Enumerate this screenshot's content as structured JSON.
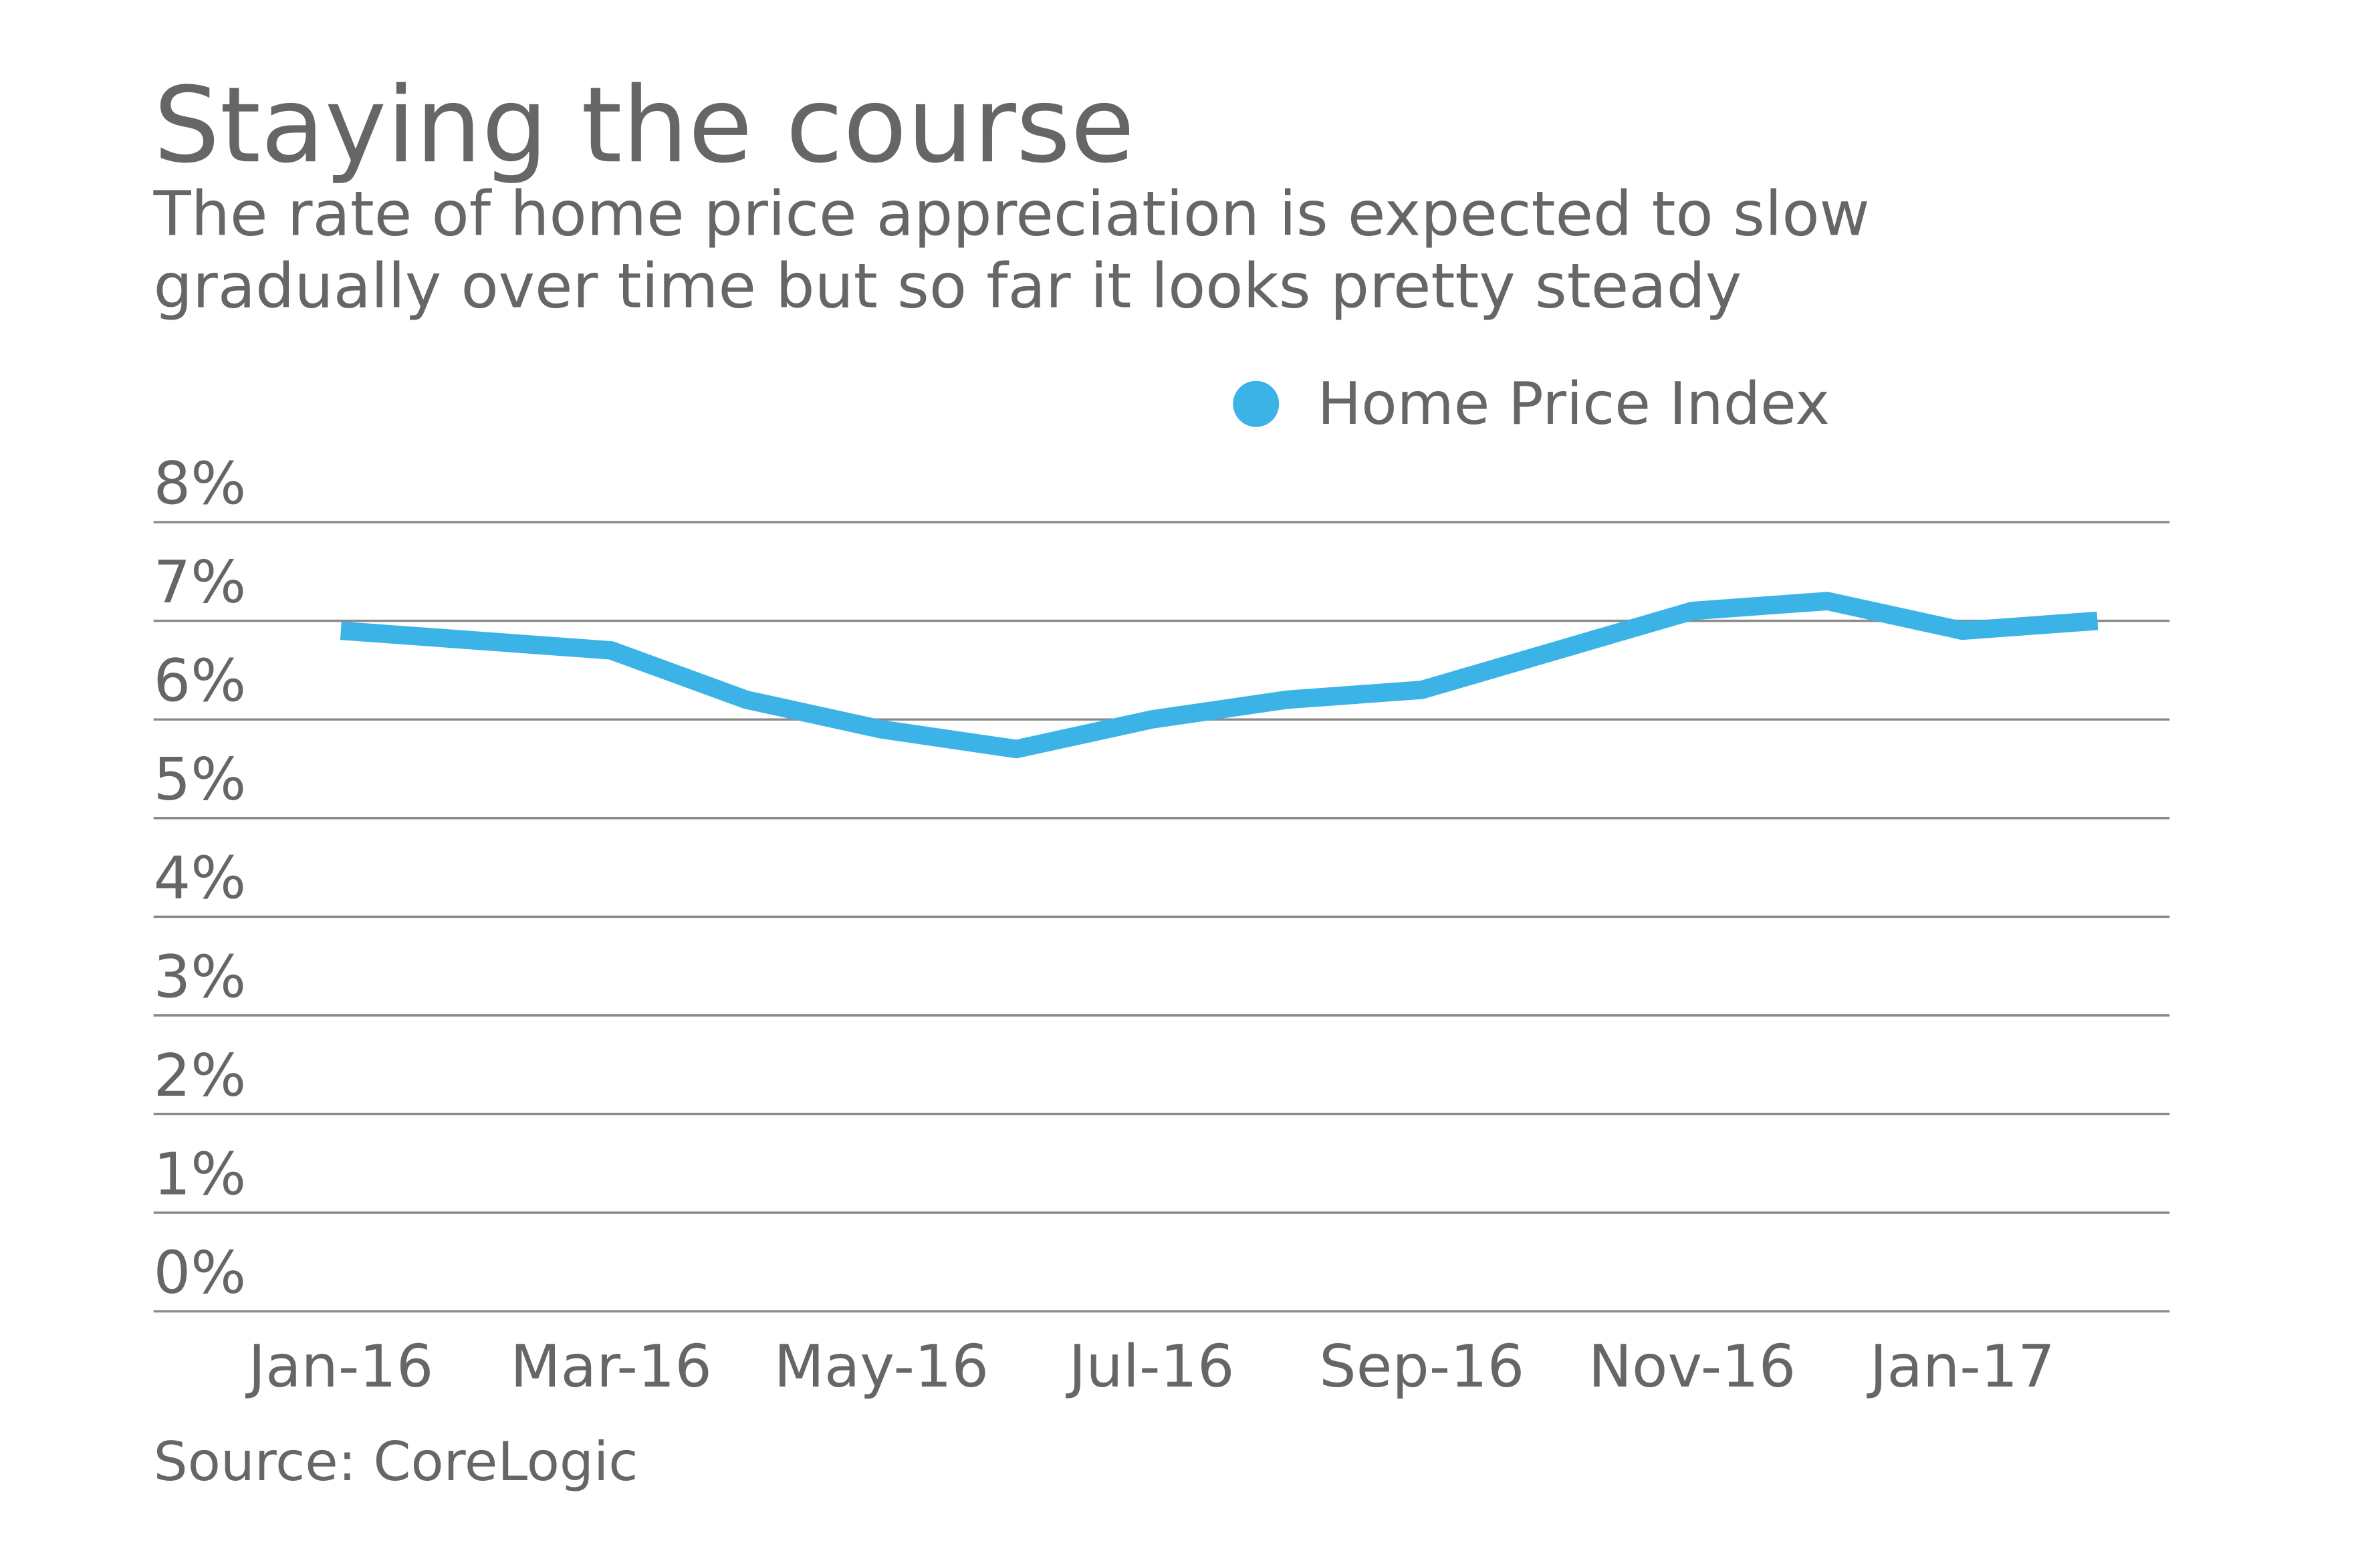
{
  "chart_data": {
    "type": "line",
    "title": "Staying the course",
    "subtitle": [
      "The rate of home price appreciation is expected to slow",
      "gradually over time but so far it looks pretty steady"
    ],
    "source": "Source: CoreLogic",
    "categories": [
      "Jan-16",
      null,
      "Mar-16",
      null,
      "May-16",
      null,
      "Jul-16",
      null,
      "Sep-16",
      null,
      "Nov-16",
      null,
      "Jan-17",
      null
    ],
    "series": [
      {
        "name": "Home Price Index",
        "color": "#3bb3e6",
        "values": [
          6.9,
          6.8,
          6.7,
          6.2,
          5.9,
          5.7,
          6.0,
          6.2,
          6.3,
          6.7,
          7.1,
          7.2,
          6.9,
          7.0
        ]
      }
    ],
    "ylim": [
      0,
      8
    ],
    "yticks": [
      {
        "value": 0,
        "label": "0%"
      },
      {
        "value": 1,
        "label": "1%"
      },
      {
        "value": 2,
        "label": "2%"
      },
      {
        "value": 3,
        "label": "3%"
      },
      {
        "value": 4,
        "label": "4%"
      },
      {
        "value": 5,
        "label": "5%"
      },
      {
        "value": 6,
        "label": "6%"
      },
      {
        "value": 7,
        "label": "7%"
      },
      {
        "value": 8,
        "label": "8%"
      }
    ],
    "grid": true,
    "legend": "top-right"
  }
}
